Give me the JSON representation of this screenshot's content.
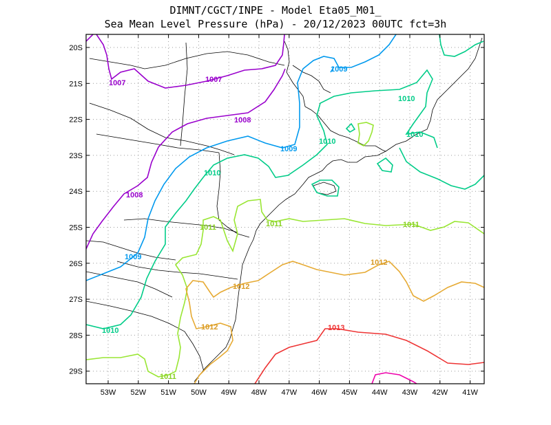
{
  "title": {
    "line1": "DIMNT/CGCT/INPE -  Model Eta05_M01_",
    "line2": "Sea Mean Level Pressure (hPa) - 20/12/2023 00UTC fct=3h"
  },
  "axes": {
    "lat_labels": [
      "20S",
      "21S",
      "22S",
      "23S",
      "24S",
      "25S",
      "26S",
      "27S",
      "28S",
      "29S"
    ],
    "lon_labels": [
      "53W",
      "52W",
      "51W",
      "50W",
      "49W",
      "48W",
      "47W",
      "46W",
      "45W",
      "44W",
      "43W",
      "42W",
      "41W"
    ]
  },
  "colors": {
    "1007": "#9900cc",
    "1008": "#9900cc",
    "1009": "#0099ee",
    "1010": "#00cc88",
    "1011": "#99e633",
    "1012": "#e6aa33",
    "1013": "#ee3333",
    "1014": "#ee00aa",
    "coast": "#000000",
    "grid": "#999999"
  },
  "contour_labels": [
    {
      "id": "c1007a",
      "text": "1007",
      "level": "1007"
    },
    {
      "id": "c1007b",
      "text": "1007",
      "level": "1007"
    },
    {
      "id": "c1008a",
      "text": "1008",
      "level": "1008"
    },
    {
      "id": "c1008b",
      "text": "1008",
      "level": "1008"
    },
    {
      "id": "c1009a",
      "text": "1009",
      "level": "1009"
    },
    {
      "id": "c1009b",
      "text": "1009",
      "level": "1009"
    },
    {
      "id": "c1009c",
      "text": "1009",
      "level": "1009"
    },
    {
      "id": "c1010a",
      "text": "1010",
      "level": "1010"
    },
    {
      "id": "c1010b",
      "text": "1010",
      "level": "1010"
    },
    {
      "id": "c1010c",
      "text": "1010",
      "level": "1010"
    },
    {
      "id": "c1010d",
      "text": "1010",
      "level": "1010"
    },
    {
      "id": "c1010e",
      "text": "1010",
      "level": "1010"
    },
    {
      "id": "c1011a",
      "text": "1011",
      "level": "1011"
    },
    {
      "id": "c1011b",
      "text": "1011",
      "level": "1011"
    },
    {
      "id": "c1011c",
      "text": "1011",
      "level": "1011"
    },
    {
      "id": "c1011d",
      "text": "1011",
      "level": "1011"
    },
    {
      "id": "c1012a",
      "text": "1012",
      "level": "1012"
    },
    {
      "id": "c1012b",
      "text": "1012",
      "level": "1012"
    },
    {
      "id": "c1012c",
      "text": "1012",
      "level": "1012"
    },
    {
      "id": "c1013a",
      "text": "1013",
      "level": "1013"
    }
  ]
}
